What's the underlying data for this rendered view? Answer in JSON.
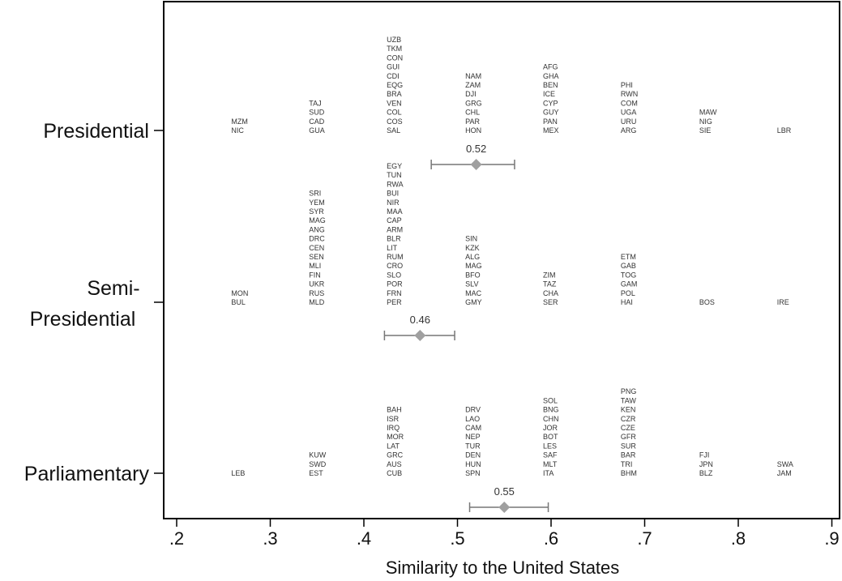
{
  "chart_data": {
    "type": "scatter",
    "xlabel": "Similarity to the United States",
    "xlim": [
      0.17,
      0.9
    ],
    "x_ticks": [
      ".2",
      ".3",
      ".4",
      ".5",
      ".6",
      ".7",
      ".8",
      ".9"
    ],
    "x_tick_values": [
      0.2,
      0.3,
      0.4,
      0.5,
      0.6,
      0.7,
      0.8,
      0.9
    ],
    "grid": false,
    "marker_color": "#a0a0a0",
    "groups": [
      {
        "category_lines": [
          "Presidential"
        ],
        "mean": 0.52,
        "mean_label": "0.52",
        "ci": [
          0.472,
          0.561
        ],
        "bins": [
          {
            "x": 0.267,
            "codes": [
              "NIC",
              "MZM"
            ]
          },
          {
            "x": 0.35,
            "codes": [
              "GUA",
              "CAD",
              "SUD",
              "TAJ"
            ]
          },
          {
            "x": 0.433,
            "codes": [
              "SAL",
              "COS",
              "COL",
              "VEN",
              "BRA",
              "EQG",
              "CDI",
              "GUI",
              "CON",
              "TKM",
              "UZB"
            ]
          },
          {
            "x": 0.517,
            "codes": [
              "HON",
              "PAR",
              "CHL",
              "GRG",
              "DJI",
              "ZAM",
              "NAM"
            ]
          },
          {
            "x": 0.6,
            "codes": [
              "MEX",
              "PAN",
              "GUY",
              "CYP",
              "ICE",
              "BEN",
              "GHA",
              "AFG"
            ]
          },
          {
            "x": 0.683,
            "codes": [
              "ARG",
              "URU",
              "UGA",
              "COM",
              "RWN",
              "PHI"
            ]
          },
          {
            "x": 0.767,
            "codes": [
              "SIE",
              "NIG",
              "MAW"
            ]
          },
          {
            "x": 0.85,
            "codes": [
              "LBR"
            ]
          }
        ]
      },
      {
        "category_lines": [
          "Semi-",
          "Presidential"
        ],
        "mean": 0.46,
        "mean_label": "0.46",
        "ci": [
          0.422,
          0.497
        ],
        "bins": [
          {
            "x": 0.267,
            "codes": [
              "BUL",
              "MON"
            ]
          },
          {
            "x": 0.35,
            "codes": [
              "MLD",
              "RUS",
              "UKR",
              "FIN",
              "MLI",
              "SEN",
              "CEN",
              "DRC",
              "ANG",
              "MAG",
              "SYR",
              "YEM",
              "SRI"
            ]
          },
          {
            "x": 0.433,
            "codes": [
              "PER",
              "FRN",
              "POR",
              "SLO",
              "CRO",
              "RUM",
              "LIT",
              "BLR",
              "ARM",
              "CAP",
              "MAA",
              "NIR",
              "BUI",
              "RWA",
              "TUN",
              "EGY"
            ]
          },
          {
            "x": 0.517,
            "codes": [
              "GMY",
              "MAC",
              "SLV",
              "BFO",
              "MAG",
              "ALG",
              "KZK",
              "SIN"
            ]
          },
          {
            "x": 0.6,
            "codes": [
              "SER",
              "CHA",
              "TAZ",
              "ZIM"
            ]
          },
          {
            "x": 0.683,
            "codes": [
              "HAI",
              "POL",
              "GAM",
              "TOG",
              "GAB",
              "ETM"
            ]
          },
          {
            "x": 0.767,
            "codes": [
              "BOS"
            ]
          },
          {
            "x": 0.85,
            "codes": [
              "IRE"
            ]
          }
        ]
      },
      {
        "category_lines": [
          "Parliamentary"
        ],
        "mean": 0.55,
        "mean_label": "0.55",
        "ci": [
          0.513,
          0.597
        ],
        "bins": [
          {
            "x": 0.267,
            "codes": [
              "LEB"
            ]
          },
          {
            "x": 0.35,
            "codes": [
              "EST",
              "SWD",
              "KUW"
            ]
          },
          {
            "x": 0.433,
            "codes": [
              "CUB",
              "AUS",
              "GRC",
              "LAT",
              "MOR",
              "IRQ",
              "ISR",
              "BAH"
            ]
          },
          {
            "x": 0.517,
            "codes": [
              "SPN",
              "HUN",
              "DEN",
              "TUR",
              "NEP",
              "CAM",
              "LAO",
              "DRV"
            ]
          },
          {
            "x": 0.6,
            "codes": [
              "ITA",
              "MLT",
              "SAF",
              "LES",
              "BOT",
              "JOR",
              "CHN",
              "BNG",
              "SOL"
            ]
          },
          {
            "x": 0.683,
            "codes": [
              "BHM",
              "TRI",
              "BAR",
              "SUR",
              "GFR",
              "CZE",
              "CZR",
              "KEN",
              "TAW",
              "PNG"
            ]
          },
          {
            "x": 0.767,
            "codes": [
              "BLZ",
              "JPN",
              "FJI"
            ]
          },
          {
            "x": 0.85,
            "codes": [
              "JAM",
              "SWA"
            ]
          }
        ]
      }
    ]
  }
}
